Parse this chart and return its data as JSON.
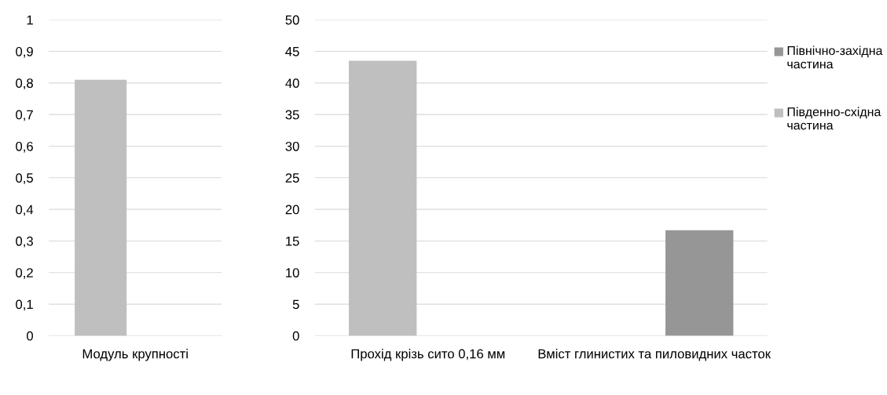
{
  "chart_data": [
    {
      "type": "bar",
      "categories": [
        "Модуль крупності"
      ],
      "series": [
        {
          "color": "#bfbfbf",
          "values": [
            0.81
          ]
        },
        {
          "color": "#969696",
          "values": [
            null
          ]
        }
      ],
      "ylim": [
        0,
        1
      ],
      "yticks": [
        0,
        {
          "value": 0.1,
          "label": "0,1"
        },
        {
          "value": 0.2,
          "label": "0,2"
        },
        {
          "value": 0.3,
          "label": "0,3"
        },
        {
          "value": 0.4,
          "label": "0,4"
        },
        {
          "value": 0.5,
          "label": "0,5"
        },
        {
          "value": 0.6,
          "label": "0,6"
        },
        {
          "value": 0.7,
          "label": "0,7"
        },
        {
          "value": 0.8,
          "label": "0,8"
        },
        {
          "value": 0.9,
          "label": "0,9"
        },
        1
      ],
      "grid": "y",
      "legend": false
    },
    {
      "type": "bar",
      "categories": [
        "Прохід крізь сито 0,16 мм",
        "Вміст глинистих та пиловидних часток"
      ],
      "series": [
        {
          "name": "Південно-східна частина",
          "color": "#bfbfbf",
          "values": [
            43.5,
            null
          ]
        },
        {
          "name": "Північно-західна частина",
          "color": "#969696",
          "values": [
            null,
            16.7
          ]
        }
      ],
      "ylim": [
        0,
        50
      ],
      "yticks": [
        0,
        5,
        10,
        15,
        20,
        25,
        30,
        35,
        40,
        45,
        50
      ],
      "grid": "y",
      "legend": "right"
    }
  ]
}
